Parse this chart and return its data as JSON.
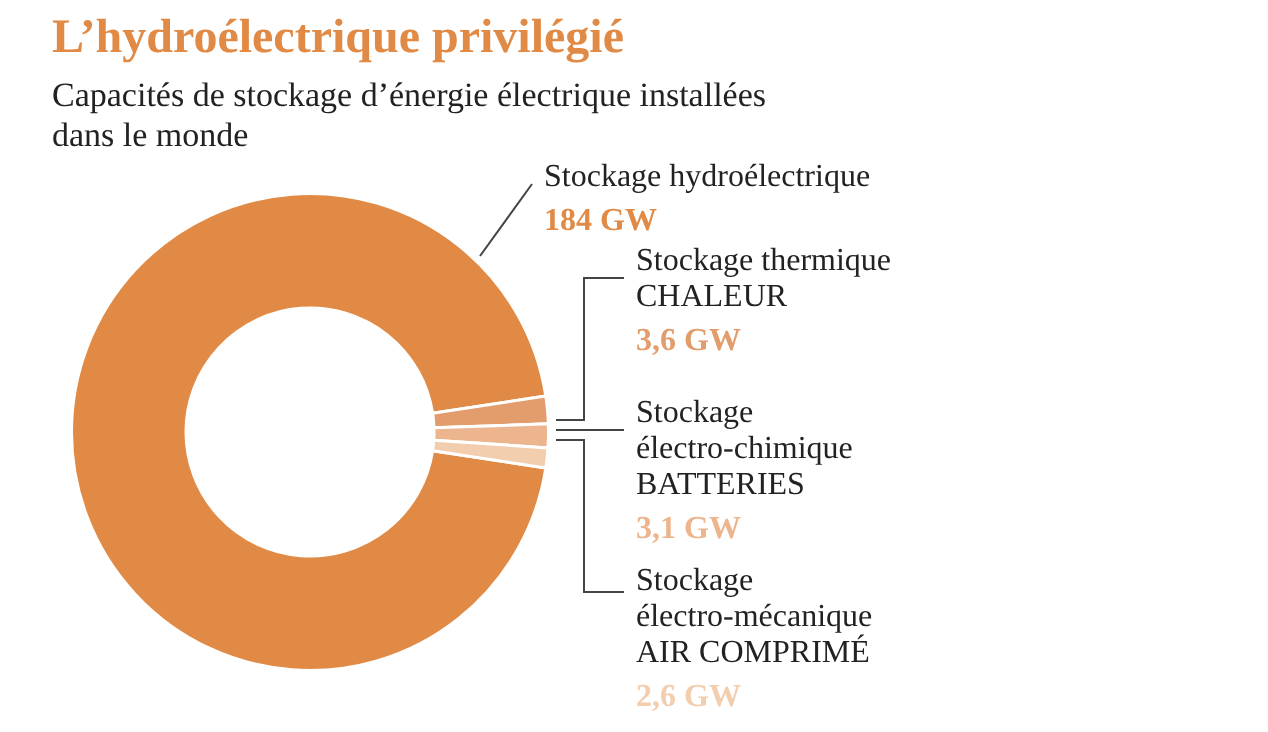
{
  "chart_data": {
    "type": "donut",
    "title": "L’hydroélectrique privilégié",
    "subtitle": "Capacités de stockage d’énergie électrique installées\ndans le monde",
    "categories": [
      "Stockage hydroélectrique",
      "Stockage thermique\nCHALEUR",
      "Stockage\nélectro-chimique\nBATTERIES",
      "Stockage\nélectro-mécanique\nAIR COMPRIMÉ"
    ],
    "values": [
      184,
      3.6,
      3.1,
      2.6
    ],
    "colors": [
      "#e08a45",
      "#e39c6c",
      "#ecb58e",
      "#f2cdae"
    ],
    "value_labels": [
      "184 GW",
      "3,6 GW",
      "3,1 GW",
      "2,6 GW"
    ],
    "legend": false
  }
}
